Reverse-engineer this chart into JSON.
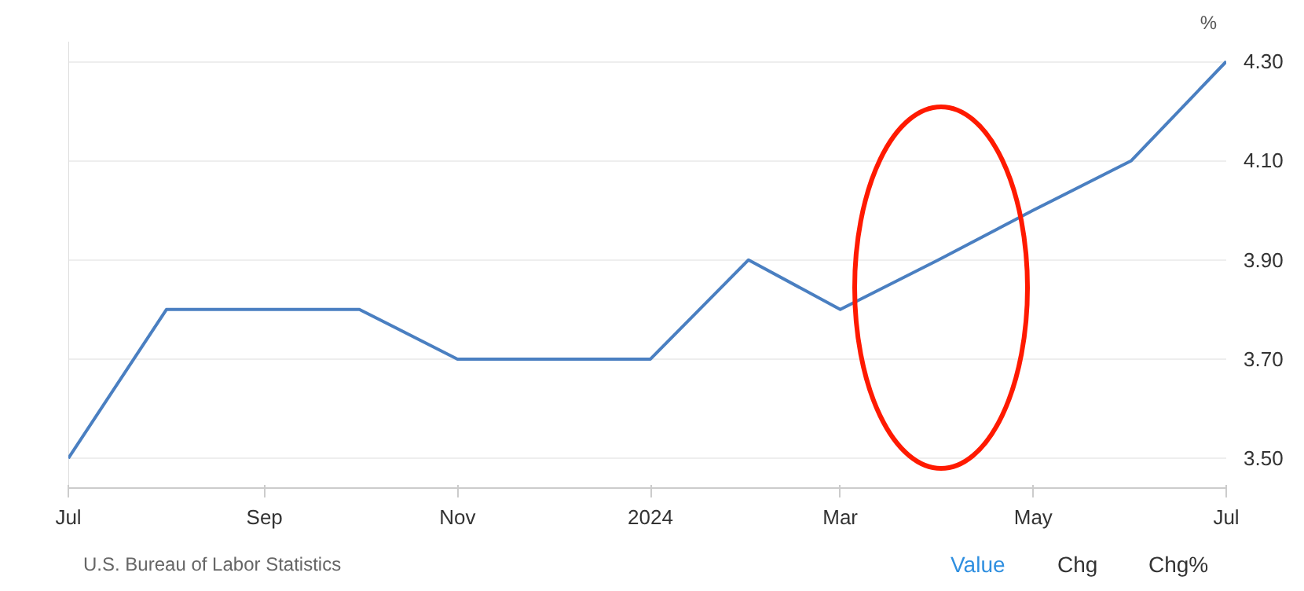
{
  "chart_data": {
    "type": "line",
    "ylabel": "%",
    "x": [
      "2023-07",
      "2023-08",
      "2023-09",
      "2023-10",
      "2023-11",
      "2023-12",
      "2024-01",
      "2024-02",
      "2024-03",
      "2024-04",
      "2024-05",
      "2024-06",
      "2024-07"
    ],
    "series": [
      {
        "color": "#4a7fc1",
        "values": [
          3.5,
          3.8,
          3.8,
          3.8,
          3.7,
          3.7,
          3.7,
          3.9,
          3.8,
          3.9,
          4.0,
          4.1,
          4.3
        ]
      }
    ],
    "xlim": [
      "2023-07",
      "2024-07"
    ],
    "xticks": [
      {
        "value": "2023-07",
        "label": "Jul"
      },
      {
        "value": "2023-09",
        "label": "Sep"
      },
      {
        "value": "2023-11",
        "label": "Nov"
      },
      {
        "value": "2024-01",
        "label": "2024"
      },
      {
        "value": "2024-03",
        "label": "Mar"
      },
      {
        "value": "2024-05",
        "label": "May"
      },
      {
        "value": "2024-07",
        "label": "Jul"
      }
    ],
    "ylim": [
      3.44,
      4.34
    ],
    "yticks": [
      {
        "value": 3.5,
        "label": "3.50"
      },
      {
        "value": 3.7,
        "label": "3.70"
      },
      {
        "value": 3.9,
        "label": "3.90"
      },
      {
        "value": 4.1,
        "label": "4.10"
      },
      {
        "value": 4.3,
        "label": "4.30"
      }
    ],
    "grid": "y",
    "marker": "none",
    "line_style": "solid",
    "annotations": [
      "U.S. Bureau of Labor Statistics",
      "Value",
      "Chg",
      "Chg%"
    ]
  }
}
